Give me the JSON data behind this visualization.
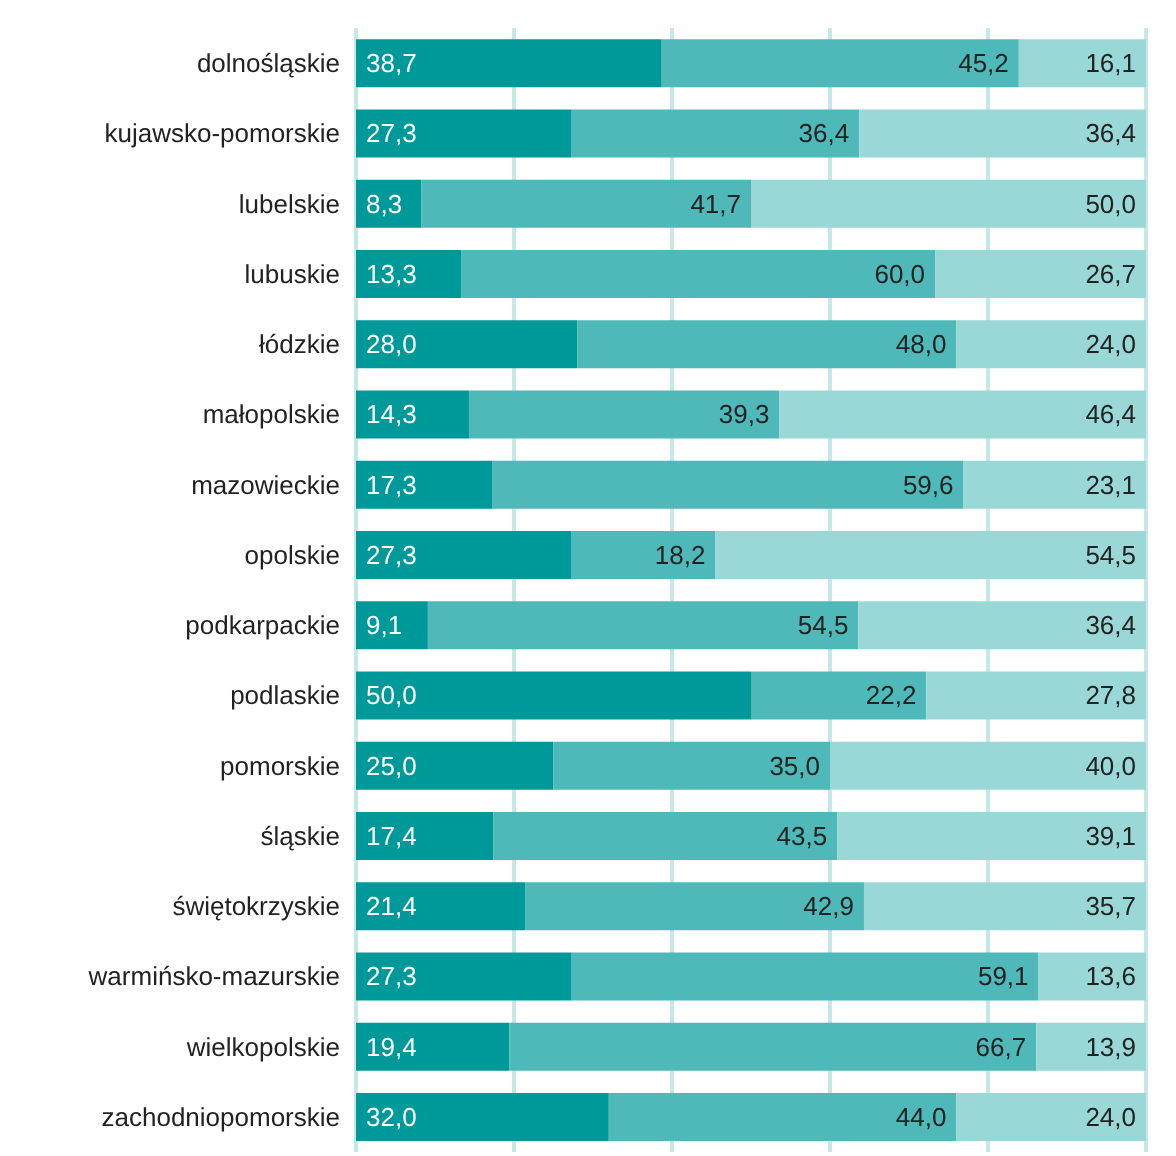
{
  "chart_data": {
    "type": "bar",
    "orientation": "horizontal",
    "stacked": true,
    "categories": [
      "dolnośląskie",
      "kujawsko-pomorskie",
      "lubelskie",
      "lubuskie",
      "łódzkie",
      "małopolskie",
      "mazowieckie",
      "opolskie",
      "podkarpackie",
      "podlaskie",
      "pomorskie",
      "śląskie",
      "świętokrzyskie",
      "warmińsko-mazurskie",
      "wielkopolskie",
      "zachodniopomorskie"
    ],
    "series": [
      {
        "color": "#00999a",
        "values": [
          38.7,
          27.3,
          8.3,
          13.3,
          28.0,
          14.3,
          17.3,
          27.3,
          9.1,
          50.0,
          25.0,
          17.4,
          21.4,
          27.3,
          19.4,
          32.0
        ],
        "value_labels": [
          "38,7",
          "27,3",
          "8,3",
          "13,3",
          "28,0",
          "14,3",
          "17,3",
          "27,3",
          "9,1",
          "50,0",
          "25,0",
          "17,4",
          "21,4",
          "27,3",
          "19,4",
          "32,0"
        ]
      },
      {
        "color": "#4fb8b8",
        "values": [
          45.2,
          36.4,
          41.7,
          60.0,
          48.0,
          39.3,
          59.6,
          18.2,
          54.5,
          22.2,
          35.0,
          43.5,
          42.9,
          59.1,
          66.7,
          44.0
        ],
        "value_labels": [
          "45,2",
          "36,4",
          "41,7",
          "60,0",
          "48,0",
          "39,3",
          "59,6",
          "18,2",
          "54,5",
          "22,2",
          "35,0",
          "43,5",
          "42,9",
          "59,1",
          "66,7",
          "44,0"
        ]
      },
      {
        "color": "#9ad8d8",
        "values": [
          16.1,
          36.4,
          50.0,
          26.7,
          24.0,
          46.4,
          23.1,
          54.5,
          36.4,
          27.8,
          40.0,
          39.1,
          35.7,
          13.6,
          13.9,
          24.0
        ],
        "value_labels": [
          "16,1",
          "36,4",
          "50,0",
          "26,7",
          "24,0",
          "46,4",
          "23,1",
          "54,5",
          "36,4",
          "27,8",
          "40,0",
          "39,1",
          "35,7",
          "13,6",
          "13,9",
          "24,0"
        ]
      }
    ],
    "xlim": [
      0,
      100
    ],
    "xticks": [
      {
        "value": 0,
        "label": null
      },
      {
        "value": 20,
        "label": null
      },
      {
        "value": 40,
        "label": null
      },
      {
        "value": 60,
        "label": null
      },
      {
        "value": 80,
        "label": null
      },
      {
        "value": 100,
        "label": null
      }
    ],
    "grid": "x",
    "tick_labels": "y"
  }
}
